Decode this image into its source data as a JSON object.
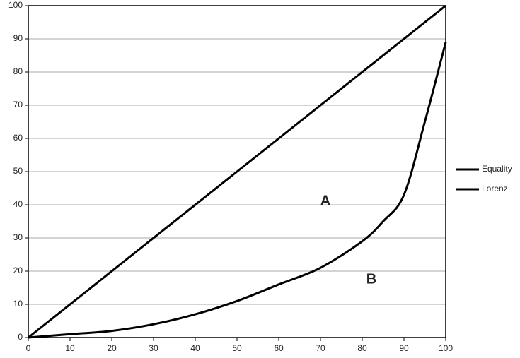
{
  "chart_data": {
    "type": "line",
    "series": [
      {
        "name": "Equality",
        "color": "#000000",
        "x": [
          0,
          100
        ],
        "values": [
          0,
          100
        ]
      },
      {
        "name": "Lorenz",
        "color": "#000000",
        "x": [
          0,
          10,
          20,
          30,
          40,
          50,
          60,
          70,
          80,
          85,
          90,
          95,
          100
        ],
        "values": [
          0,
          1,
          2,
          4,
          7,
          11,
          16,
          21,
          29,
          35,
          43,
          65,
          89
        ]
      }
    ],
    "annotations": [
      "A",
      "B"
    ],
    "xlim": [
      0,
      100
    ],
    "xticks": [
      0,
      10,
      20,
      30,
      40,
      50,
      60,
      70,
      80,
      90,
      100
    ],
    "ylim": [
      0,
      100
    ],
    "yticks": [
      0,
      10,
      20,
      30,
      40,
      50,
      60,
      70,
      80,
      90,
      100
    ],
    "grid": true,
    "legend": "right"
  }
}
